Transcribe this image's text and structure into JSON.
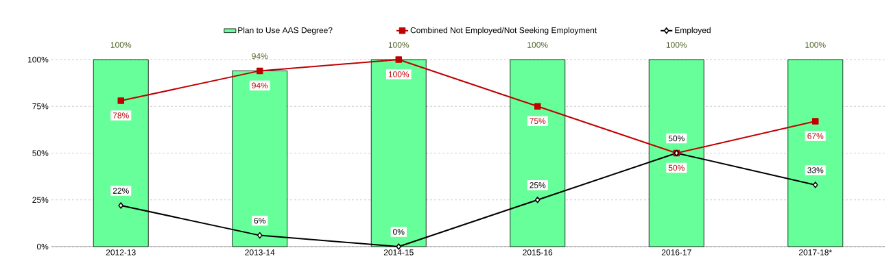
{
  "chart_data": {
    "type": "bar",
    "categories": [
      "2012-13",
      "2013-14",
      "2014-15",
      "2015-16",
      "2016-17",
      "2017-18*"
    ],
    "series": [
      {
        "name": "Plan to Use AAS Degree?",
        "color": "#66ff99",
        "values": [
          100,
          94,
          100,
          100,
          100,
          100
        ],
        "value_labels": [
          "100%",
          "94%",
          "100%",
          "100%",
          "100%",
          "100%"
        ]
      },
      {
        "name": "Combined Not Employed/Not Seeking Employment",
        "type": "line",
        "color": "#c00000",
        "marker": "square",
        "values": [
          78,
          94,
          100,
          75,
          50,
          67
        ],
        "value_labels": [
          "78%",
          "94%",
          "100%",
          "75%",
          "50%",
          "67%"
        ]
      },
      {
        "name": "Employed",
        "type": "line",
        "color": "#000000",
        "marker": "diamond",
        "values": [
          22,
          6,
          0,
          25,
          50,
          33
        ],
        "value_labels": [
          "22%",
          "6%",
          "0%",
          "25%",
          "50%",
          "33%"
        ]
      }
    ],
    "ylim": [
      0,
      100
    ],
    "yticks": [
      {
        "value": 0,
        "label": "0%"
      },
      {
        "value": 25,
        "label": "25%"
      },
      {
        "value": 50,
        "label": "50%"
      },
      {
        "value": 75,
        "label": "75%"
      },
      {
        "value": 100,
        "label": "100%"
      }
    ],
    "grid": "y",
    "legend": "top"
  }
}
